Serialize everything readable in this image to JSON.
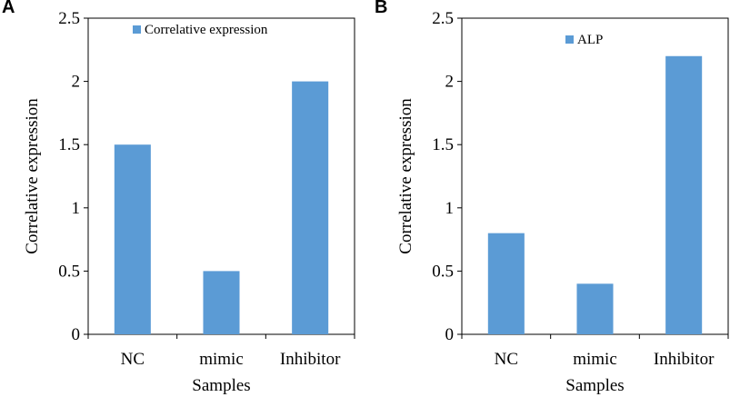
{
  "colors": {
    "bar": "#5b9bd5",
    "axis": "#000000",
    "background": "#ffffff"
  },
  "chart_data": [
    {
      "panel_label": "A",
      "type": "bar",
      "title": "",
      "xlabel": "Samples",
      "ylabel": "Correlative expression",
      "categories": [
        "NC",
        "mimic",
        "Inhibitor"
      ],
      "series": [
        {
          "name": "Correlative expression",
          "values": [
            1.5,
            0.5,
            2.0
          ]
        }
      ],
      "ylim": [
        0,
        2.5
      ],
      "yticks": [
        0,
        0.5,
        1,
        1.5,
        2,
        2.5
      ],
      "ytick_labels": [
        "0",
        "0.5",
        "1",
        "1.5",
        "2",
        "2.5"
      ],
      "legend": "top-left-inside",
      "grid": false
    },
    {
      "panel_label": "B",
      "type": "bar",
      "title": "",
      "xlabel": "Samples",
      "ylabel": "Correlative expression",
      "categories": [
        "NC",
        "mimic",
        "Inhibitor"
      ],
      "series": [
        {
          "name": "ALP",
          "values": [
            0.8,
            0.4,
            2.2
          ]
        }
      ],
      "ylim": [
        0,
        2.5
      ],
      "yticks": [
        0,
        0.5,
        1,
        1.5,
        2,
        2.5
      ],
      "ytick_labels": [
        "0",
        "0.5",
        "1",
        "1.5",
        "2",
        "2.5"
      ],
      "legend": "top-left-inside",
      "grid": false
    }
  ]
}
